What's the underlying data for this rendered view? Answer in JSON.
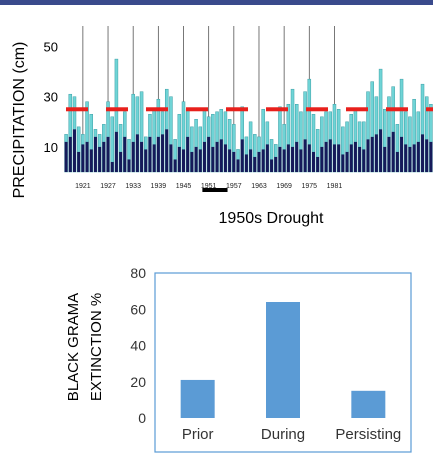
{
  "chart_data": [
    {
      "type": "bar",
      "ylabel": "PRECIPITATION (cm)",
      "yticks": [
        10,
        30,
        50
      ],
      "ylim": [
        0,
        55
      ],
      "x_tick_labels": [
        "1921",
        "1927",
        "1933",
        "1939",
        "1945",
        "1951",
        "1957",
        "1963",
        "1969",
        "1975",
        "1981"
      ],
      "first_year": 1917,
      "series": [
        {
          "values": [
            15,
            31,
            30,
            18,
            15,
            28,
            23,
            17,
            15,
            19,
            28,
            22,
            45,
            19,
            24,
            13,
            31,
            30,
            32,
            14,
            23,
            25,
            29,
            24,
            33,
            30,
            13,
            23,
            28,
            25,
            18,
            21,
            18,
            25,
            22,
            23,
            24,
            25,
            24,
            21,
            19,
            9,
            26,
            14,
            20,
            15,
            14,
            25,
            20,
            13,
            11,
            26,
            19,
            27,
            33,
            27,
            24,
            32,
            37,
            23,
            17,
            22,
            24,
            24,
            27,
            25,
            18,
            20,
            23,
            25,
            20,
            20,
            32,
            36,
            30,
            41,
            25,
            30,
            34,
            19,
            37,
            24,
            22,
            29,
            24,
            35,
            30,
            27
          ]
        },
        {
          "values": [
            12,
            14,
            17,
            8,
            11,
            12,
            9,
            14,
            10,
            12,
            14,
            4,
            16,
            8,
            14,
            5,
            12,
            15,
            12,
            9,
            14,
            11,
            14,
            15,
            17,
            11,
            5,
            10,
            9,
            14,
            8,
            10,
            9,
            12,
            14,
            10,
            12,
            13,
            11,
            9,
            8,
            5,
            13,
            7,
            9,
            6,
            8,
            9,
            11,
            5,
            6,
            10,
            9,
            11,
            10,
            12,
            9,
            13,
            11,
            8,
            6,
            10,
            12,
            13,
            11,
            11,
            7,
            8,
            11,
            12,
            10,
            9,
            13,
            14,
            15,
            17,
            10,
            14,
            16,
            8,
            14,
            11,
            10,
            11,
            12,
            15,
            13,
            12
          ]
        }
      ],
      "means": {
        "values": [
          25,
          25,
          25,
          25,
          25,
          25,
          25,
          25,
          25,
          25
        ]
      },
      "annotation": "1950s Drought",
      "highlight_years": [
        1950,
        1956
      ],
      "colors": {
        "bar_light": "#6fd4d6",
        "bar_dark": "#161a5a",
        "mean": "#e8201c"
      }
    },
    {
      "type": "bar",
      "categories": [
        "Prior",
        "During",
        "Persisting"
      ],
      "values": [
        21,
        64,
        15
      ],
      "ylim": [
        0,
        80
      ],
      "yticks": [
        0,
        20,
        40,
        60,
        80
      ],
      "ylabel": [
        "BLACK GRAMA",
        "EXTINCTION %"
      ],
      "grid": false,
      "colors": {
        "bar": "#5b9bd5",
        "frame": "#5b9bd5"
      }
    }
  ]
}
